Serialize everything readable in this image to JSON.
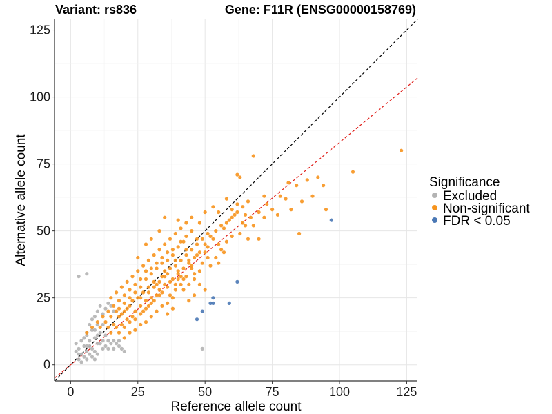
{
  "chart_data": {
    "type": "scatter",
    "title_left": "Variant: rs836",
    "title_right": "Gene: F11R (ENSG00000158769)",
    "xlabel": "Reference allele count",
    "ylabel": "Alternative allele count",
    "xlim": [
      -6,
      129
    ],
    "ylim": [
      -6,
      129
    ],
    "x_ticks": [
      0,
      25,
      50,
      75,
      100,
      125
    ],
    "y_ticks": [
      0,
      25,
      50,
      75,
      100,
      125
    ],
    "grid": true,
    "legend": {
      "title": "Significance",
      "position": "right",
      "items": [
        {
          "label": "Excluded",
          "color": "#b3b3b3"
        },
        {
          "label": "Non-significant",
          "color": "#f7941d"
        },
        {
          "label": "FDR < 0.05",
          "color": "#4a78b5"
        }
      ]
    },
    "reference_lines": [
      {
        "name": "identity",
        "color": "#000000",
        "slope": 1,
        "intercept": 0
      },
      {
        "name": "fit",
        "color": "#e0201b",
        "slope": 0.83,
        "intercept": 0
      }
    ],
    "series": [
      {
        "name": "Excluded",
        "color": "#b3b3b3",
        "points": [
          [
            3,
            33
          ],
          [
            6,
            34
          ],
          [
            2,
            5
          ],
          [
            3,
            6
          ],
          [
            4,
            4
          ],
          [
            5,
            7
          ],
          [
            6,
            5
          ],
          [
            7,
            9
          ],
          [
            8,
            6
          ],
          [
            9,
            10
          ],
          [
            10,
            8
          ],
          [
            11,
            12
          ],
          [
            12,
            9
          ],
          [
            13,
            11
          ],
          [
            14,
            9
          ],
          [
            15,
            8
          ],
          [
            16,
            9
          ],
          [
            17,
            8
          ],
          [
            18,
            7
          ],
          [
            19,
            6
          ],
          [
            20,
            5
          ],
          [
            5,
            3
          ],
          [
            6,
            2
          ],
          [
            7,
            4
          ],
          [
            8,
            3
          ],
          [
            9,
            5
          ],
          [
            4,
            1
          ],
          [
            3,
            2
          ],
          [
            5,
            10
          ],
          [
            6,
            12
          ],
          [
            7,
            15
          ],
          [
            8,
            17
          ],
          [
            9,
            18
          ],
          [
            10,
            20
          ],
          [
            11,
            22
          ],
          [
            12,
            19
          ],
          [
            13,
            21
          ],
          [
            14,
            23
          ],
          [
            15,
            22
          ],
          [
            16,
            20
          ],
          [
            12,
            6
          ],
          [
            10,
            4
          ],
          [
            6,
            11
          ],
          [
            8,
            13
          ],
          [
            10,
            15
          ],
          [
            2,
            8
          ],
          [
            7,
            7
          ],
          [
            9,
            13
          ],
          [
            11,
            8
          ],
          [
            13,
            7
          ],
          [
            14,
            6
          ],
          [
            16,
            6
          ],
          [
            18,
            9
          ],
          [
            6,
            7
          ],
          [
            4,
            9
          ],
          [
            3,
            4
          ],
          [
            49,
            6
          ],
          [
            12,
            15
          ],
          [
            9,
            2
          ],
          [
            10,
            11
          ]
        ]
      },
      {
        "name": "Non-significant",
        "color": "#f7941d",
        "points": [
          [
            123,
            80
          ],
          [
            105,
            72
          ],
          [
            92,
            70
          ],
          [
            94,
            67
          ],
          [
            95,
            58
          ],
          [
            88,
            69
          ],
          [
            86,
            61
          ],
          [
            84,
            67
          ],
          [
            81,
            68
          ],
          [
            80,
            62
          ],
          [
            77,
            56
          ],
          [
            75,
            58
          ],
          [
            73,
            60
          ],
          [
            72,
            55
          ],
          [
            70,
            57
          ],
          [
            68,
            78
          ],
          [
            72,
            63
          ],
          [
            70,
            47
          ],
          [
            68,
            52
          ],
          [
            66,
            47
          ],
          [
            65,
            56
          ],
          [
            64,
            53
          ],
          [
            62,
            71
          ],
          [
            58,
            62
          ],
          [
            63,
            70
          ],
          [
            55,
            57
          ],
          [
            53,
            59
          ],
          [
            50,
            57
          ],
          [
            48,
            53
          ],
          [
            45,
            50
          ],
          [
            43,
            48
          ],
          [
            41,
            46
          ],
          [
            38,
            43
          ],
          [
            36,
            42
          ],
          [
            34,
            40
          ],
          [
            32,
            38
          ],
          [
            30,
            36
          ],
          [
            28,
            35
          ],
          [
            26,
            32
          ],
          [
            24,
            30
          ],
          [
            22,
            28
          ],
          [
            20,
            26
          ],
          [
            18,
            24
          ],
          [
            16,
            22
          ],
          [
            14,
            20
          ],
          [
            12,
            18
          ],
          [
            10,
            16
          ],
          [
            8,
            14
          ],
          [
            6,
            12
          ],
          [
            35,
            30
          ],
          [
            40,
            32
          ],
          [
            45,
            36
          ],
          [
            50,
            42
          ],
          [
            55,
            45
          ],
          [
            60,
            48
          ],
          [
            42,
            28
          ],
          [
            44,
            30
          ],
          [
            46,
            32
          ],
          [
            48,
            35
          ],
          [
            38,
            25
          ],
          [
            36,
            23
          ],
          [
            34,
            22
          ],
          [
            32,
            20
          ],
          [
            30,
            18
          ],
          [
            28,
            16
          ],
          [
            26,
            15
          ],
          [
            24,
            13
          ],
          [
            22,
            12
          ],
          [
            20,
            10
          ],
          [
            30,
            25
          ],
          [
            33,
            28
          ],
          [
            37,
            31
          ],
          [
            40,
            35
          ],
          [
            25,
            25
          ],
          [
            27,
            27
          ],
          [
            29,
            29
          ],
          [
            31,
            31
          ],
          [
            35,
            35
          ],
          [
            39,
            39
          ],
          [
            43,
            43
          ],
          [
            47,
            47
          ],
          [
            18,
            18
          ],
          [
            20,
            20
          ],
          [
            22,
            22
          ],
          [
            16,
            15
          ],
          [
            14,
            14
          ],
          [
            39,
            30
          ],
          [
            41,
            33
          ],
          [
            44,
            38
          ],
          [
            47,
            41
          ],
          [
            51,
            44
          ],
          [
            53,
            47
          ],
          [
            57,
            51
          ],
          [
            59,
            54
          ],
          [
            61,
            56
          ],
          [
            63,
            49
          ],
          [
            65,
            52
          ],
          [
            67,
            55
          ],
          [
            52,
            37
          ],
          [
            54,
            40
          ],
          [
            56,
            43
          ],
          [
            58,
            46
          ],
          [
            49,
            38
          ],
          [
            51,
            40
          ],
          [
            46,
            34
          ],
          [
            42,
            32
          ],
          [
            33,
            26
          ],
          [
            31,
            24
          ],
          [
            29,
            22
          ],
          [
            27,
            20
          ],
          [
            23,
            18
          ],
          [
            21,
            17
          ],
          [
            19,
            15
          ],
          [
            17,
            14
          ],
          [
            28,
            32
          ],
          [
            30,
            34
          ],
          [
            32,
            36
          ],
          [
            34,
            38
          ],
          [
            36,
            39
          ],
          [
            38,
            41
          ],
          [
            40,
            44
          ],
          [
            42,
            46
          ],
          [
            26,
            29
          ],
          [
            24,
            27
          ],
          [
            22,
            25
          ],
          [
            20,
            23
          ],
          [
            18,
            21
          ],
          [
            37,
            26
          ],
          [
            39,
            28
          ],
          [
            41,
            30
          ],
          [
            43,
            33
          ],
          [
            45,
            37
          ],
          [
            15,
            18
          ],
          [
            13,
            16
          ],
          [
            11,
            14
          ],
          [
            78,
            63
          ],
          [
            82,
            58
          ],
          [
            90,
            63
          ],
          [
            85,
            49
          ],
          [
            60,
            58
          ],
          [
            62,
            60
          ],
          [
            35,
            55
          ],
          [
            40,
            54
          ],
          [
            45,
            55
          ],
          [
            28,
            45
          ],
          [
            30,
            47
          ],
          [
            25,
            40
          ],
          [
            33,
            50
          ],
          [
            48,
            30
          ],
          [
            50,
            28
          ],
          [
            55,
            38
          ],
          [
            57,
            42
          ],
          [
            44,
            24
          ],
          [
            46,
            26
          ],
          [
            36,
            19
          ],
          [
            38,
            21
          ],
          [
            26,
            22
          ],
          [
            28,
            24
          ],
          [
            32,
            30
          ],
          [
            34,
            33
          ],
          [
            36,
            34
          ],
          [
            23,
            24
          ],
          [
            21,
            21
          ],
          [
            19,
            19
          ],
          [
            24,
            20
          ],
          [
            26,
            25
          ],
          [
            29,
            27
          ],
          [
            31,
            29
          ],
          [
            33,
            31
          ],
          [
            35,
            33
          ],
          [
            37,
            36
          ],
          [
            39,
            37
          ],
          [
            41,
            39
          ],
          [
            43,
            41
          ],
          [
            45,
            43
          ],
          [
            47,
            45
          ],
          [
            49,
            47
          ],
          [
            51,
            49
          ],
          [
            17,
            20
          ],
          [
            15,
            12
          ],
          [
            18,
            12
          ],
          [
            20,
            14
          ],
          [
            22,
            16
          ],
          [
            24,
            17
          ],
          [
            26,
            19
          ],
          [
            28,
            21
          ],
          [
            30,
            23
          ],
          [
            32,
            26
          ],
          [
            34,
            27
          ],
          [
            36,
            29
          ],
          [
            38,
            32
          ],
          [
            40,
            34
          ],
          [
            42,
            36
          ],
          [
            44,
            39
          ],
          [
            46,
            40
          ],
          [
            48,
            42
          ],
          [
            50,
            45
          ],
          [
            52,
            48
          ],
          [
            54,
            50
          ],
          [
            56,
            52
          ],
          [
            58,
            53
          ],
          [
            60,
            55
          ],
          [
            62,
            57
          ],
          [
            64,
            59
          ],
          [
            66,
            61
          ],
          [
            25,
            35
          ],
          [
            27,
            37
          ],
          [
            29,
            39
          ],
          [
            31,
            41
          ],
          [
            33,
            43
          ],
          [
            35,
            45
          ],
          [
            37,
            47
          ],
          [
            39,
            49
          ],
          [
            41,
            51
          ],
          [
            43,
            53
          ],
          [
            21,
            31
          ],
          [
            19,
            29
          ],
          [
            17,
            27
          ],
          [
            15,
            25
          ],
          [
            23,
            33
          ]
        ]
      },
      {
        "name": "FDR < 0.05",
        "color": "#4a78b5",
        "points": [
          [
            97,
            54
          ],
          [
            62,
            31
          ],
          [
            59,
            23
          ],
          [
            53,
            25
          ],
          [
            52,
            23
          ],
          [
            53,
            23
          ],
          [
            49,
            20
          ],
          [
            47,
            17
          ]
        ]
      }
    ]
  }
}
